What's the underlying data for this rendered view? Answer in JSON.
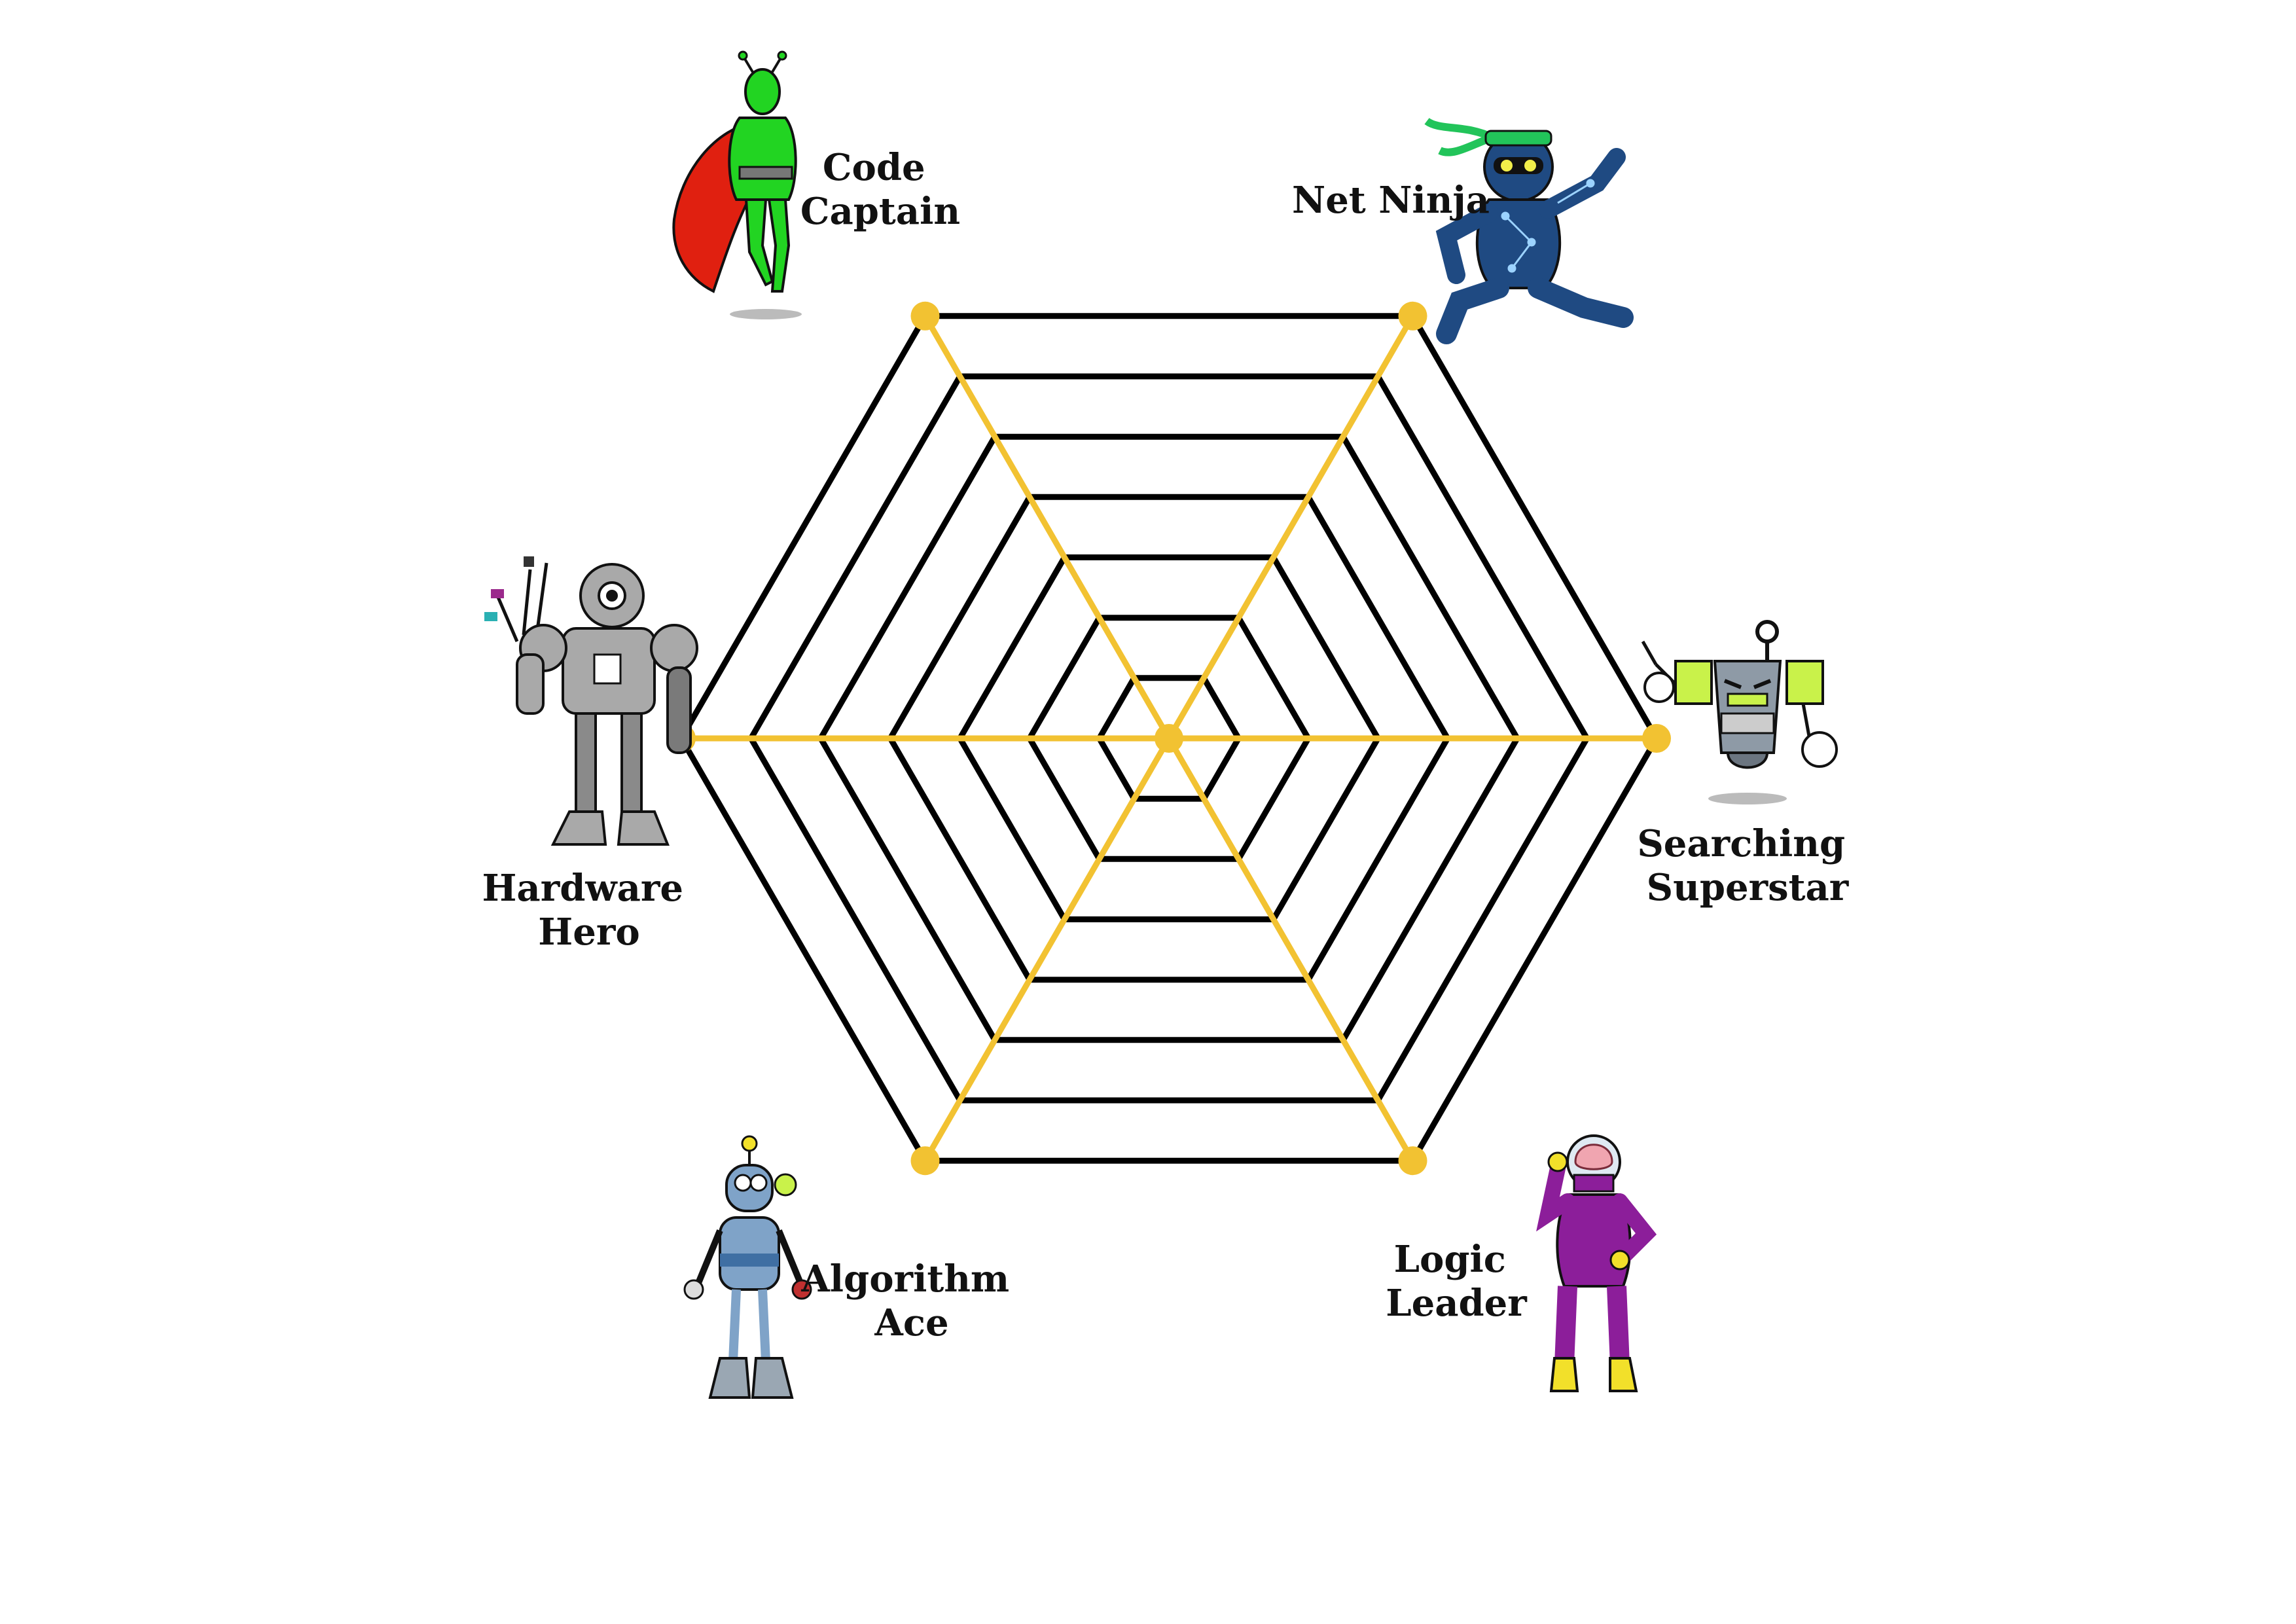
{
  "labels": {
    "code_captain": [
      "Code",
      "Captain"
    ],
    "net_ninja": [
      "Net Ninja"
    ],
    "hardware_hero": [
      "Hardware",
      "Hero"
    ],
    "searching_superstar": [
      "Searching",
      "Superstar"
    ],
    "algorithm_ace": [
      "Algorithm",
      "Ace"
    ],
    "logic_leader": [
      "Logic",
      "Leader"
    ]
  },
  "web": {
    "rings": 7
  },
  "colors": {
    "ring": "#000000",
    "spoke": "#F2C232",
    "background": "#FFFFFF",
    "code_captain_body": "#22D422",
    "code_captain_cape": "#E02010",
    "net_ninja_body": "#1F4A82",
    "net_ninja_band": "#22C45A",
    "hardware_hero_body": "#A9A9A9",
    "searching_superstar_body": "#8E9AA6",
    "algorithm_ace_body": "#7FA3C8",
    "logic_leader_body": "#8C1E9A",
    "logic_leader_boots": "#F2E02A"
  },
  "characters": [
    "code-captain-character",
    "net-ninja-character",
    "hardware-hero-character",
    "searching-superstar-character",
    "algorithm-ace-character",
    "logic-leader-character"
  ]
}
